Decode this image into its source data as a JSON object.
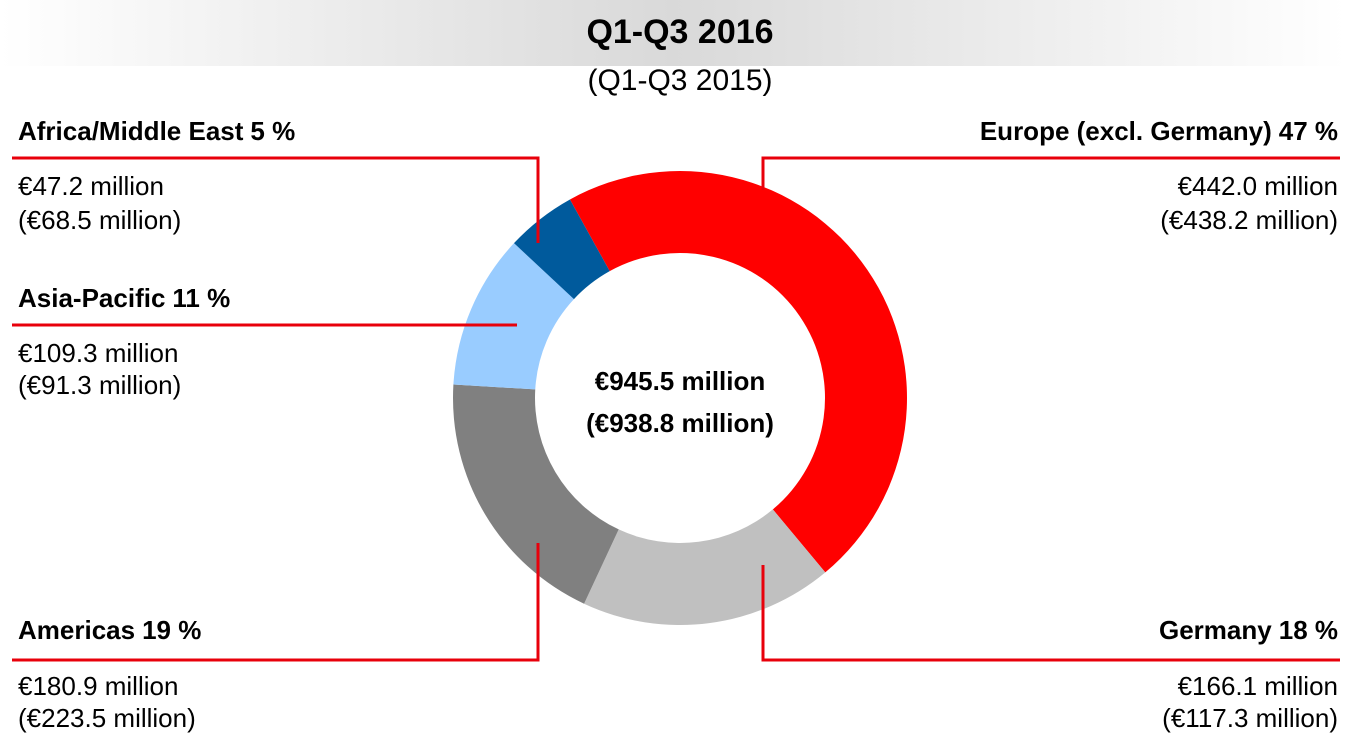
{
  "chart_data": {
    "type": "donut",
    "title": "Q1-Q3 2016",
    "subtitle": "(Q1-Q3 2015)",
    "categories": [
      "Europe (excl. Germany)",
      "Germany",
      "Americas",
      "Asia-Pacific",
      "Africa/Middle East"
    ],
    "values": [
      47,
      18,
      19,
      11,
      5
    ],
    "value_labels": [
      "47 %",
      "18 %",
      "19 %",
      "11 %",
      "5 %"
    ],
    "colors": [
      "#ff0000",
      "#c0c0c0",
      "#808080",
      "#99ccff",
      "#005a9c"
    ],
    "amount_labels": [
      "€442.0 million",
      "€166.1 million",
      "€180.9 million",
      "€109.3 million",
      "€47.2 million"
    ],
    "prior_amount_labels": [
      "(€438.2 million)",
      "(€117.3 million)",
      "(€223.5 million)",
      "(€91.3 million)",
      "(€68.5 million)"
    ],
    "total_label": "€945.5 million",
    "prior_total_label": "(€938.8 million)"
  }
}
